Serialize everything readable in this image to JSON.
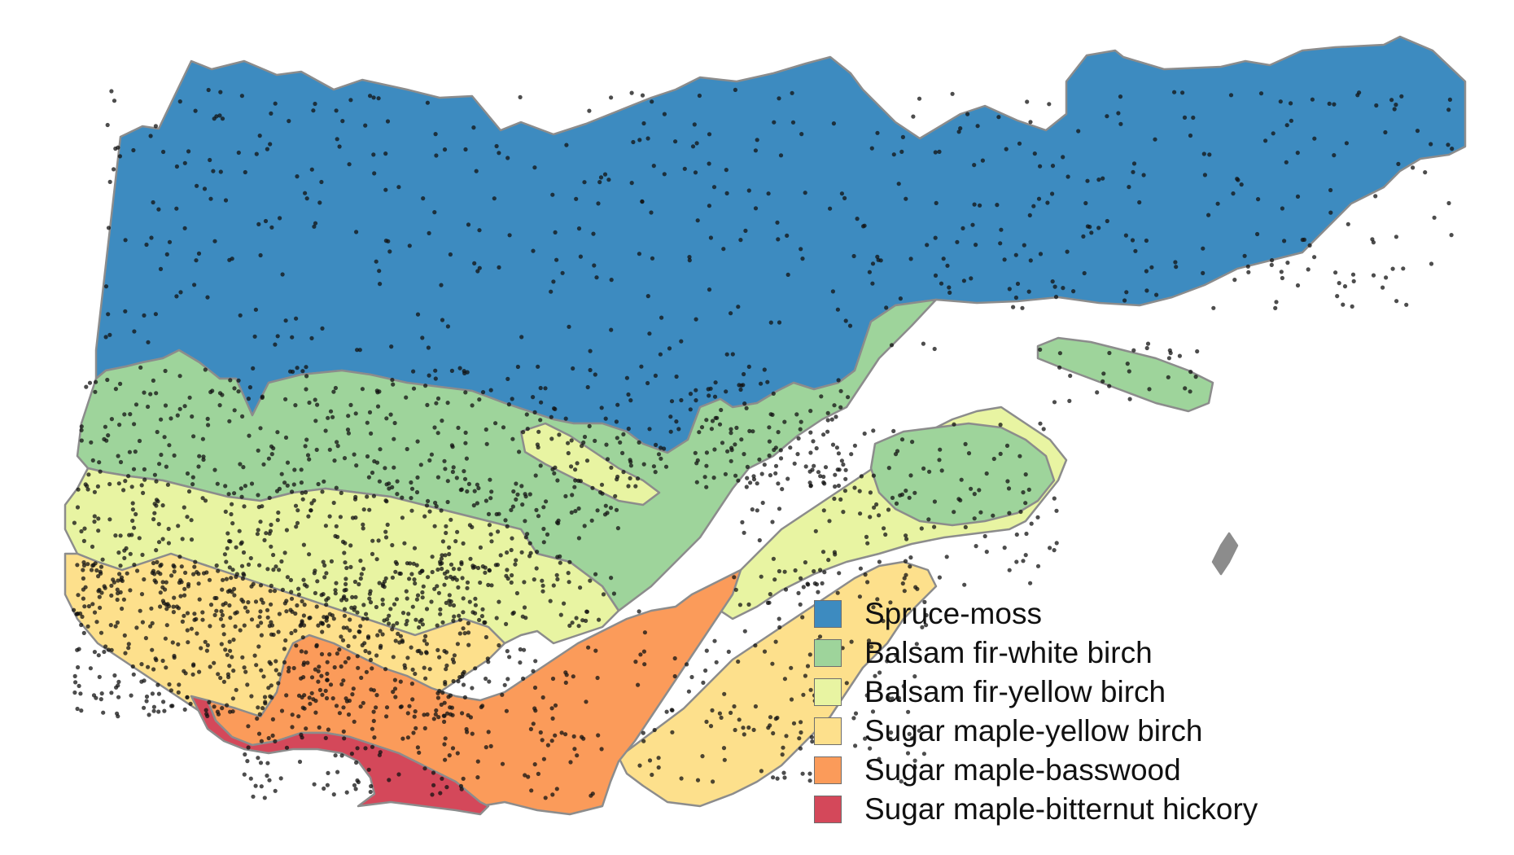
{
  "legend": {
    "items": [
      {
        "label": "Spruce-moss",
        "color": "#3d8bc0"
      },
      {
        "label": "Balsam fir-white birch",
        "color": "#9ed49b"
      },
      {
        "label": "Balsam fir-yellow birch",
        "color": "#e8f4a2"
      },
      {
        "label": "Sugar maple-yellow birch",
        "color": "#fde08c"
      },
      {
        "label": "Sugar maple-basswood",
        "color": "#fb9b5a"
      },
      {
        "label": "Sugar maple-bitternut hickory",
        "color": "#d4485a"
      }
    ]
  },
  "colors": {
    "border": "#8c8c8c",
    "point": "#111111",
    "background": "#ffffff"
  }
}
